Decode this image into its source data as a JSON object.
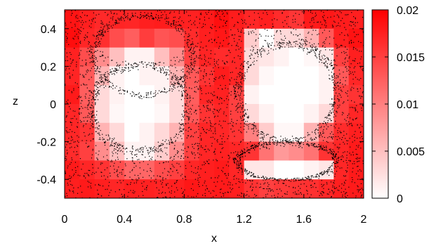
{
  "chart_data": {
    "type": "heatmap",
    "xlabel": "x",
    "ylabel": "z",
    "xlim": [
      0,
      2
    ],
    "ylim": [
      -0.5,
      0.5
    ],
    "x_ticks": [
      "0",
      "0.4",
      "0.8",
      "1.2",
      "1.6",
      "2"
    ],
    "y_ticks": [
      "0.4",
      "0.2",
      "0",
      "-0.2",
      "-0.4"
    ],
    "colorbar": {
      "range": [
        0,
        0.02
      ],
      "ticks": [
        "0.02",
        "0.015",
        "0.01",
        "0.005",
        "0"
      ],
      "color_low": "#ffffff",
      "color_high": "#ff0000"
    },
    "grid": {
      "nx": 20,
      "nz": 10,
      "x_range": [
        0,
        2
      ],
      "z_range": [
        -0.5,
        0.5
      ],
      "values": [
        [
          0.0184,
          0.0176,
          0.0168,
          0.0172,
          0.017,
          0.0176,
          0.0178,
          0.0175,
          0.0174,
          0.018,
          0.0188,
          0.0178,
          0.017,
          0.0176,
          0.0166,
          0.0158,
          0.018,
          0.0182,
          0.0178,
          0.0176
        ],
        [
          0.019,
          0.017,
          0.0164,
          0.014,
          0.0126,
          0.0152,
          0.0134,
          0.014,
          0.0166,
          0.0176,
          0.0182,
          0.017,
          0.004,
          0.0,
          0.003,
          0.0032,
          0.006,
          0.013,
          0.0176,
          0.0186
        ],
        [
          0.0174,
          0.014,
          0.009,
          0.005,
          0.001,
          0.001,
          0.005,
          0.009,
          0.015,
          0.0172,
          0.0166,
          0.017,
          0.003,
          0.002,
          0.001,
          0.0,
          0.0006,
          0.002,
          0.015,
          0.0176
        ],
        [
          0.0172,
          0.013,
          0.006,
          0.001,
          0.0,
          0.001,
          0.001,
          0.006,
          0.013,
          0.016,
          0.0178,
          0.017,
          0.003,
          0.0006,
          0.0,
          0.0,
          0.0,
          0.001,
          0.013,
          0.017
        ],
        [
          0.018,
          0.0126,
          0.003,
          0.001,
          0.0,
          0.0,
          0.001,
          0.003,
          0.0126,
          0.017,
          0.0174,
          0.015,
          0.001,
          0.0,
          0.0,
          0.0,
          0.0,
          0.001,
          0.015,
          0.016
        ],
        [
          0.017,
          0.013,
          0.003,
          0.0006,
          0.0,
          0.0,
          0.0006,
          0.003,
          0.013,
          0.016,
          0.017,
          0.015,
          0.003,
          0.001,
          0.0,
          0.0,
          0.001,
          0.003,
          0.015,
          0.017
        ],
        [
          0.017,
          0.016,
          0.006,
          0.003,
          0.0,
          0.001,
          0.003,
          0.006,
          0.015,
          0.017,
          0.017,
          0.016,
          0.01,
          0.004,
          0.0006,
          0.0006,
          0.006,
          0.013,
          0.0166,
          0.0176
        ],
        [
          0.0166,
          0.015,
          0.009,
          0.005,
          0.001,
          0.001,
          0.004,
          0.009,
          0.015,
          0.017,
          0.0174,
          0.017,
          0.016,
          0.011,
          0.008,
          0.009,
          0.011,
          0.016,
          0.017,
          0.018
        ],
        [
          0.018,
          0.017,
          0.016,
          0.014,
          0.012,
          0.012,
          0.014,
          0.015,
          0.017,
          0.0176,
          0.018,
          0.017,
          0.002,
          0.002,
          0.0,
          0.0,
          0.001,
          0.002,
          0.017,
          0.018
        ],
        [
          0.0176,
          0.018,
          0.0176,
          0.017,
          0.0176,
          0.0174,
          0.0172,
          0.0176,
          0.0182,
          0.0178,
          0.018,
          0.0176,
          0.016,
          0.015,
          0.0156,
          0.016,
          0.0162,
          0.017,
          0.0176,
          0.018
        ]
      ]
    },
    "particles": {
      "background_density": "high",
      "rings": [
        {
          "shape": "ellipse",
          "cx": 0.5,
          "cz": -0.02,
          "rx": 0.32,
          "rz": 0.23
        },
        {
          "shape": "ellipse",
          "cx": 0.52,
          "cz": 0.26,
          "rx": 0.33,
          "rz": 0.21
        },
        {
          "shape": "ellipse",
          "cx": 1.49,
          "cz": 0.06,
          "rx": 0.33,
          "rz": 0.26
        },
        {
          "shape": "ellipse",
          "cx": 1.48,
          "cz": -0.3,
          "rx": 0.33,
          "rz": 0.1
        }
      ],
      "clear_regions": [
        {
          "cx": 0.5,
          "cz": -0.02,
          "rx": 0.28,
          "rz": 0.2
        },
        {
          "cx": 0.52,
          "cz": 0.34,
          "rx": 0.28,
          "rz": 0.12
        },
        {
          "cx": 1.49,
          "cz": 0.06,
          "rx": 0.29,
          "rz": 0.23
        },
        {
          "cx": 1.48,
          "cz": -0.31,
          "rx": 0.3,
          "rz": 0.08
        }
      ]
    }
  }
}
